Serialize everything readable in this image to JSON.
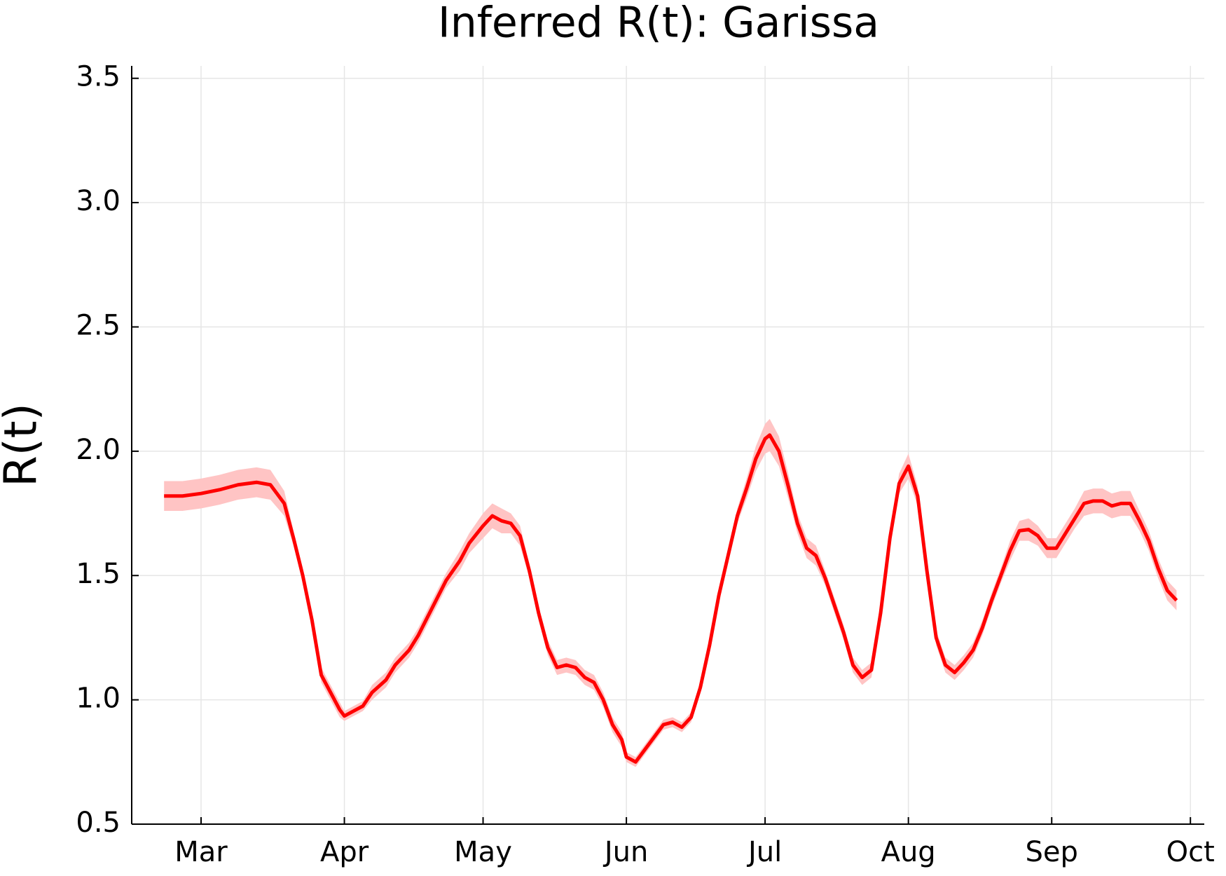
{
  "chart_data": {
    "type": "line",
    "title": "Inferred R(t): Garissa",
    "y_label": "R(t)",
    "color": "#ff0000",
    "band_color": "#ffc4c4",
    "x": [
      -8,
      -4,
      0,
      4,
      8,
      12,
      15,
      18,
      20,
      22,
      24,
      26,
      28,
      30,
      31,
      33,
      35,
      37,
      40,
      42,
      45,
      47,
      50,
      53,
      56,
      58,
      61,
      63,
      65,
      67,
      69,
      71,
      73,
      75,
      77,
      79,
      81,
      83,
      85,
      87,
      89,
      91,
      92,
      94,
      96,
      98,
      100,
      102,
      104,
      106,
      108,
      110,
      112,
      114,
      116,
      118,
      120,
      122,
      123,
      125,
      127,
      129,
      131,
      133,
      135,
      137,
      139,
      141,
      143,
      145,
      147,
      149,
      151,
      153,
      155,
      157,
      159,
      161,
      163,
      165,
      167,
      169,
      171,
      173,
      175,
      177,
      179,
      181,
      183,
      185,
      187,
      189,
      191,
      193,
      195,
      197,
      199,
      201,
      203,
      205,
      207,
      209,
      211
    ],
    "values": [
      1.82,
      1.82,
      1.83,
      1.845,
      1.865,
      1.875,
      1.865,
      1.79,
      1.65,
      1.5,
      1.32,
      1.1,
      1.03,
      0.96,
      0.935,
      0.955,
      0.975,
      1.03,
      1.08,
      1.14,
      1.2,
      1.26,
      1.37,
      1.48,
      1.56,
      1.63,
      1.7,
      1.74,
      1.72,
      1.71,
      1.66,
      1.52,
      1.35,
      1.21,
      1.13,
      1.14,
      1.13,
      1.09,
      1.07,
      1.0,
      0.9,
      0.84,
      0.77,
      0.75,
      0.8,
      0.85,
      0.9,
      0.91,
      0.89,
      0.93,
      1.05,
      1.22,
      1.42,
      1.58,
      1.74,
      1.85,
      1.97,
      2.05,
      2.065,
      2.0,
      1.86,
      1.71,
      1.61,
      1.58,
      1.49,
      1.38,
      1.27,
      1.14,
      1.09,
      1.12,
      1.35,
      1.65,
      1.87,
      1.94,
      1.82,
      1.52,
      1.25,
      1.14,
      1.11,
      1.15,
      1.2,
      1.29,
      1.4,
      1.5,
      1.6,
      1.68,
      1.685,
      1.66,
      1.61,
      1.61,
      1.67,
      1.73,
      1.79,
      1.8,
      1.8,
      1.78,
      1.79,
      1.79,
      1.72,
      1.64,
      1.53,
      1.44,
      1.4
    ],
    "lower": [
      1.76,
      1.76,
      1.77,
      1.785,
      1.805,
      1.815,
      1.805,
      1.74,
      1.62,
      1.47,
      1.29,
      1.07,
      1.0,
      0.93,
      0.915,
      0.935,
      0.955,
      1.0,
      1.05,
      1.11,
      1.17,
      1.23,
      1.34,
      1.45,
      1.52,
      1.59,
      1.65,
      1.69,
      1.67,
      1.67,
      1.62,
      1.49,
      1.32,
      1.18,
      1.1,
      1.11,
      1.1,
      1.06,
      1.04,
      0.97,
      0.87,
      0.81,
      0.75,
      0.73,
      0.78,
      0.83,
      0.88,
      0.89,
      0.87,
      0.91,
      1.03,
      1.2,
      1.4,
      1.55,
      1.71,
      1.81,
      1.92,
      1.99,
      2.0,
      1.94,
      1.81,
      1.67,
      1.57,
      1.54,
      1.46,
      1.35,
      1.24,
      1.11,
      1.06,
      1.09,
      1.32,
      1.62,
      1.83,
      1.89,
      1.78,
      1.49,
      1.22,
      1.11,
      1.08,
      1.12,
      1.17,
      1.26,
      1.37,
      1.47,
      1.56,
      1.64,
      1.64,
      1.62,
      1.57,
      1.57,
      1.63,
      1.69,
      1.74,
      1.75,
      1.75,
      1.73,
      1.74,
      1.74,
      1.68,
      1.6,
      1.49,
      1.4,
      1.36
    ],
    "upper": [
      1.88,
      1.88,
      1.89,
      1.905,
      1.925,
      1.935,
      1.925,
      1.84,
      1.68,
      1.53,
      1.35,
      1.13,
      1.06,
      0.99,
      0.955,
      0.975,
      0.995,
      1.06,
      1.11,
      1.17,
      1.23,
      1.29,
      1.4,
      1.51,
      1.6,
      1.67,
      1.75,
      1.79,
      1.77,
      1.75,
      1.7,
      1.55,
      1.38,
      1.24,
      1.16,
      1.17,
      1.16,
      1.12,
      1.1,
      1.03,
      0.93,
      0.87,
      0.79,
      0.77,
      0.82,
      0.87,
      0.92,
      0.93,
      0.91,
      0.95,
      1.07,
      1.24,
      1.44,
      1.61,
      1.77,
      1.89,
      2.02,
      2.11,
      2.13,
      2.06,
      1.91,
      1.75,
      1.65,
      1.62,
      1.52,
      1.41,
      1.3,
      1.17,
      1.12,
      1.15,
      1.38,
      1.68,
      1.91,
      1.99,
      1.86,
      1.55,
      1.28,
      1.17,
      1.14,
      1.18,
      1.23,
      1.32,
      1.43,
      1.53,
      1.64,
      1.72,
      1.73,
      1.7,
      1.65,
      1.65,
      1.71,
      1.77,
      1.84,
      1.85,
      1.85,
      1.83,
      1.84,
      1.84,
      1.76,
      1.68,
      1.57,
      1.48,
      1.44
    ],
    "xlim": [
      -15,
      217
    ],
    "xticks": [
      {
        "value": 0,
        "label": "Mar"
      },
      {
        "value": 31,
        "label": "Apr"
      },
      {
        "value": 61,
        "label": "May"
      },
      {
        "value": 92,
        "label": "Jun"
      },
      {
        "value": 122,
        "label": "Jul"
      },
      {
        "value": 153,
        "label": "Aug"
      },
      {
        "value": 184,
        "label": "Sep"
      },
      {
        "value": 214,
        "label": "Oct"
      }
    ],
    "ylim": [
      0.5,
      3.55
    ],
    "yticks": [
      0.5,
      {
        "value": 1,
        "label": "1.0"
      },
      1.5,
      {
        "value": 2,
        "label": "2.0"
      },
      2.5,
      {
        "value": 3,
        "label": "3.0"
      },
      3.5
    ],
    "grid": true
  }
}
